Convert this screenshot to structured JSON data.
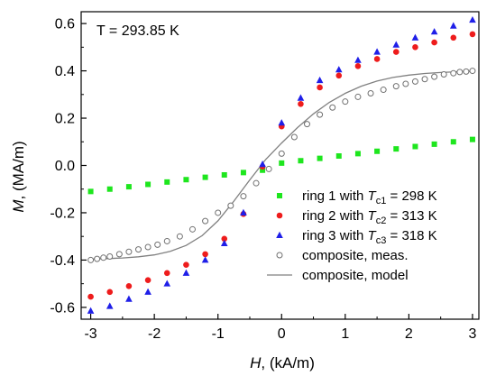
{
  "chart_data": {
    "type": "scatter",
    "annotation": "T = 293.85 K",
    "xlabel": {
      "symbol": "H",
      "unit": ", (kA/m)"
    },
    "ylabel": {
      "symbol": "M",
      "unit": ", (MA/m)"
    },
    "xlim": [
      -3.15,
      3.1
    ],
    "ylim": [
      -0.65,
      0.65
    ],
    "xticks": [
      -3,
      -2,
      -1,
      0,
      1,
      2,
      3
    ],
    "xtick_labels": [
      "-3",
      "-2",
      "-1",
      "0",
      "1",
      "2",
      "3"
    ],
    "yticks": [
      -0.6,
      -0.4,
      -0.2,
      0.0,
      0.2,
      0.4,
      0.6
    ],
    "ytick_labels": [
      "-0.6",
      "-0.4",
      "-0.2",
      "0.0",
      "0.2",
      "0.4",
      "0.6"
    ],
    "legend_position": "lower-right",
    "grid": false,
    "series": [
      {
        "name": "ring 1 with T_c1 = 298 K",
        "legend": {
          "prefix": "ring 1 with ",
          "T": "T",
          "sub": "c1",
          "suffix": " = 298 K"
        },
        "marker": "square",
        "color": "#1ee61e",
        "x": [
          -3,
          -2.7,
          -2.4,
          -2.1,
          -1.8,
          -1.5,
          -1.2,
          -0.9,
          -0.6,
          -0.3,
          0,
          0.3,
          0.6,
          0.9,
          1.2,
          1.5,
          1.8,
          2.1,
          2.4,
          2.7,
          3
        ],
        "y": [
          -0.11,
          -0.1,
          -0.09,
          -0.08,
          -0.07,
          -0.06,
          -0.05,
          -0.04,
          -0.03,
          -0.02,
          0.01,
          0.02,
          0.03,
          0.04,
          0.05,
          0.06,
          0.07,
          0.08,
          0.09,
          0.1,
          0.11
        ]
      },
      {
        "name": "ring 2 with T_c2 = 313 K",
        "legend": {
          "prefix": "ring 2 with ",
          "T": "T",
          "sub": "c2",
          "suffix": " = 313 K"
        },
        "marker": "circle",
        "color": "#ee1c1c",
        "x": [
          -3,
          -2.7,
          -2.4,
          -2.1,
          -1.8,
          -1.5,
          -1.2,
          -0.9,
          -0.6,
          -0.3,
          0,
          0.3,
          0.6,
          0.9,
          1.2,
          1.5,
          1.8,
          2.1,
          2.4,
          2.7,
          3
        ],
        "y": [
          -0.555,
          -0.535,
          -0.51,
          -0.485,
          -0.455,
          -0.42,
          -0.375,
          -0.31,
          -0.205,
          -0.005,
          0.165,
          0.26,
          0.33,
          0.38,
          0.42,
          0.45,
          0.48,
          0.5,
          0.52,
          0.54,
          0.555
        ]
      },
      {
        "name": "ring 3 with T_c3 = 318 K",
        "legend": {
          "prefix": "ring 3 with ",
          "T": "T",
          "sub": "c3",
          "suffix": " = 318 K"
        },
        "marker": "triangle",
        "color": "#1f1fe8",
        "x": [
          -3,
          -2.7,
          -2.4,
          -2.1,
          -1.8,
          -1.5,
          -1.2,
          -0.9,
          -0.6,
          -0.3,
          0,
          0.3,
          0.6,
          0.9,
          1.2,
          1.5,
          1.8,
          2.1,
          2.4,
          2.7,
          3
        ],
        "y": [
          -0.615,
          -0.595,
          -0.565,
          -0.535,
          -0.5,
          -0.455,
          -0.4,
          -0.33,
          -0.2,
          0.005,
          0.18,
          0.285,
          0.36,
          0.405,
          0.445,
          0.48,
          0.51,
          0.54,
          0.565,
          0.59,
          0.615
        ]
      },
      {
        "name": "composite, meas.",
        "legend": {
          "prefix": "composite, meas.",
          "T": "",
          "sub": "",
          "suffix": ""
        },
        "marker": "open-circle",
        "color": "#707070",
        "x": [
          -3,
          -2.9,
          -2.8,
          -2.7,
          -2.55,
          -2.4,
          -2.25,
          -2.1,
          -1.95,
          -1.8,
          -1.6,
          -1.4,
          -1.2,
          -1.0,
          -0.8,
          -0.6,
          -0.4,
          -0.2,
          0,
          0.2,
          0.4,
          0.6,
          0.8,
          1.0,
          1.2,
          1.4,
          1.6,
          1.8,
          1.95,
          2.1,
          2.25,
          2.4,
          2.55,
          2.7,
          2.8,
          2.9,
          3
        ],
        "y": [
          -0.4,
          -0.395,
          -0.39,
          -0.385,
          -0.375,
          -0.365,
          -0.355,
          -0.345,
          -0.335,
          -0.32,
          -0.3,
          -0.27,
          -0.235,
          -0.2,
          -0.17,
          -0.13,
          -0.075,
          -0.015,
          0.05,
          0.12,
          0.175,
          0.215,
          0.245,
          0.27,
          0.29,
          0.305,
          0.32,
          0.335,
          0.345,
          0.355,
          0.365,
          0.375,
          0.385,
          0.39,
          0.395,
          0.397,
          0.4
        ]
      },
      {
        "name": "composite, model",
        "legend": {
          "prefix": "composite, model",
          "T": "",
          "sub": "",
          "suffix": ""
        },
        "marker": "line",
        "color": "#808080",
        "x": [
          -3,
          -2.75,
          -2.5,
          -2.25,
          -2,
          -1.75,
          -1.5,
          -1.25,
          -1,
          -0.75,
          -0.5,
          -0.25,
          0,
          0.25,
          0.5,
          0.75,
          1,
          1.25,
          1.5,
          1.75,
          2,
          2.25,
          2.5,
          2.75,
          3
        ],
        "y": [
          -0.396,
          -0.394,
          -0.391,
          -0.386,
          -0.378,
          -0.363,
          -0.338,
          -0.297,
          -0.234,
          -0.151,
          -0.061,
          0.025,
          0.095,
          0.16,
          0.218,
          0.267,
          0.305,
          0.335,
          0.357,
          0.372,
          0.382,
          0.389,
          0.393,
          0.396,
          0.398
        ]
      }
    ]
  }
}
